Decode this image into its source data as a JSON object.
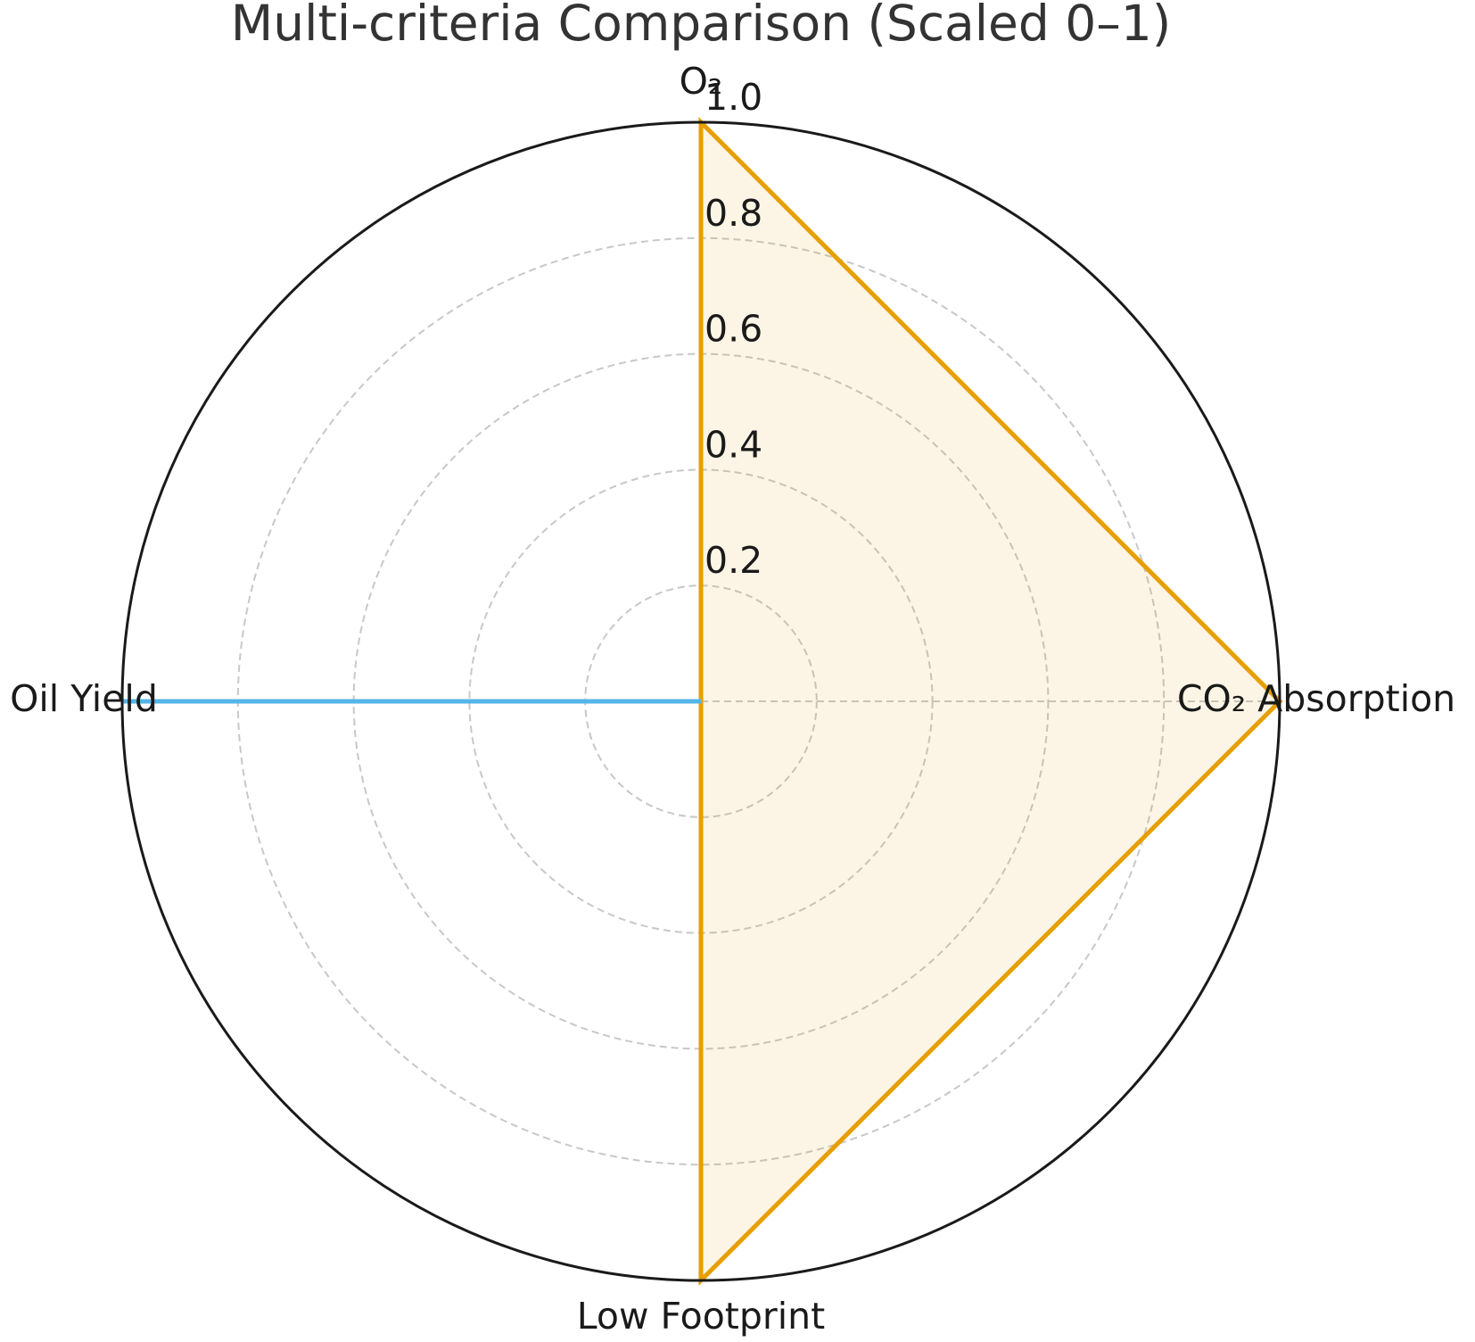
{
  "chart_data": {
    "type": "radar",
    "title": "Multi-criteria Comparison (Scaled 0–1)",
    "categories": [
      "O₂",
      "CO₂ Absorption",
      "Low Footprint",
      "Oil Yield"
    ],
    "series": [
      {
        "color": "#E69F00",
        "values": [
          1,
          1,
          1,
          0
        ]
      },
      {
        "color": "#56B4E9",
        "values": [
          0,
          0,
          0,
          1
        ]
      }
    ],
    "rlim": [
      0,
      1
    ],
    "rticks": [
      0.2,
      0.4,
      0.6,
      0.8,
      {
        "value": 1,
        "label": "1.0"
      }
    ],
    "grid": true
  }
}
